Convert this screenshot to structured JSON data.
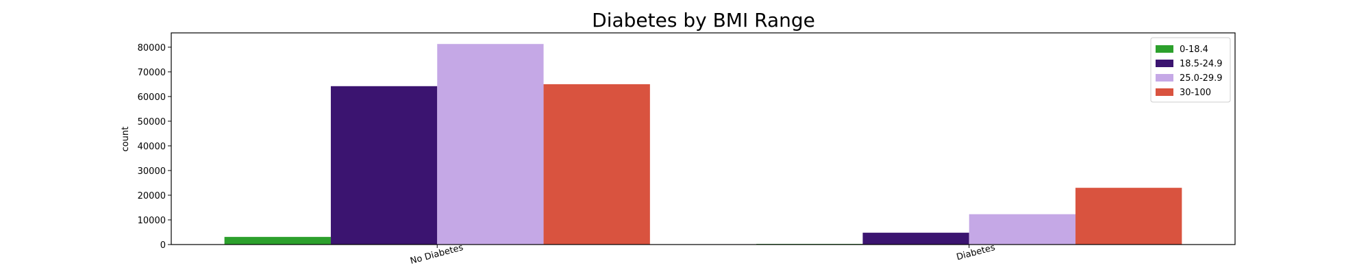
{
  "chart_data": {
    "type": "bar",
    "title": "Diabetes by BMI Range",
    "xlabel": "",
    "ylabel": "count",
    "categories": [
      "No Diabetes",
      "Diabetes"
    ],
    "ylim": [
      0,
      85800
    ],
    "yticks": [
      0,
      10000,
      20000,
      30000,
      40000,
      50000,
      60000,
      70000,
      80000
    ],
    "ytick_labels": [
      "0",
      "10000",
      "20000",
      "30000",
      "40000",
      "50000",
      "60000",
      "70000",
      "80000"
    ],
    "grid": false,
    "legend_position": "top-right",
    "xtick_rotation": 15,
    "series": [
      {
        "name": "0-18.4",
        "color": "#2ca02c",
        "values": [
          3100,
          250
        ]
      },
      {
        "name": "18.5-24.9",
        "color": "#3b1470",
        "values": [
          64200,
          4800
        ]
      },
      {
        "name": "25.0-29.9",
        "color": "#c5a8e6",
        "values": [
          81300,
          12300
        ]
      },
      {
        "name": "30-100",
        "color": "#d9533f",
        "values": [
          65000,
          23000
        ]
      }
    ]
  }
}
